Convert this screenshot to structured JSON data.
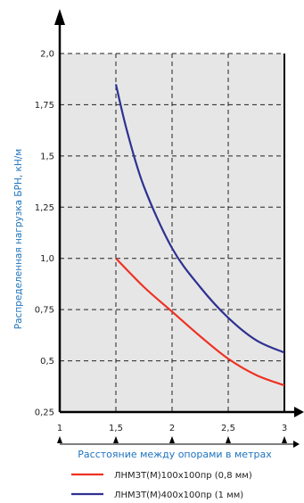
{
  "chart_data": {
    "type": "line",
    "xlabel": "Расстояние между опорами в метрах",
    "ylabel": "Распределенная нагрузка БРН, кН/м",
    "xlim": [
      1,
      3
    ],
    "ylim": [
      0.25,
      2.0
    ],
    "x_ticks": [
      1,
      1.5,
      2,
      2.5,
      3
    ],
    "x_tick_labels": [
      "1",
      "1,5",
      "2",
      "2,5",
      "3"
    ],
    "y_ticks": [
      0.25,
      0.5,
      0.75,
      1.0,
      1.25,
      1.5,
      1.75,
      2.0
    ],
    "y_tick_labels": [
      "0,25",
      "0,5",
      "0,75",
      "1,0",
      "1,25",
      "1,5",
      "1,75",
      "2,0"
    ],
    "grid": true,
    "legend_position": "bottom",
    "series": [
      {
        "name": "ЛНМЗТ(М)100x100пр (0,8 мм)",
        "color": "#ee3124",
        "x": [
          1.5,
          1.75,
          2.0,
          2.25,
          2.5,
          2.75,
          3.0
        ],
        "y": [
          1.0,
          0.86,
          0.74,
          0.62,
          0.51,
          0.43,
          0.38
        ]
      },
      {
        "name": "ЛНМЗТ(М)400x100пр (1 мм)",
        "color": "#2e3192",
        "x": [
          1.5,
          1.6,
          1.75,
          2.0,
          2.25,
          2.5,
          2.75,
          3.0
        ],
        "y": [
          1.85,
          1.62,
          1.35,
          1.05,
          0.86,
          0.71,
          0.6,
          0.54
        ]
      }
    ]
  }
}
